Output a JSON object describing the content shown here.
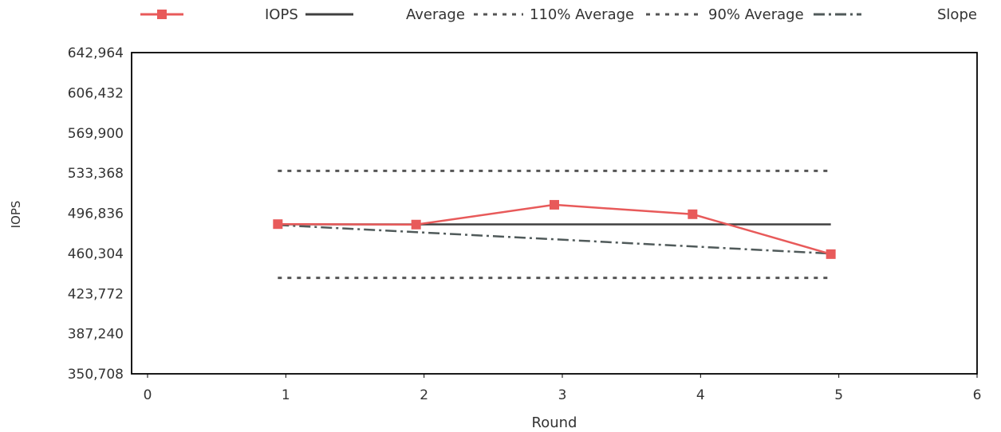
{
  "chart_data": {
    "type": "line",
    "xlabel": "Round",
    "ylabel": "IOPS",
    "xlim": [
      0,
      6
    ],
    "ylim": [
      350708,
      642964
    ],
    "x_ticks": [
      0,
      1,
      2,
      3,
      4,
      5,
      6
    ],
    "x_tick_labels": [
      "0",
      "1",
      "2",
      "3",
      "4",
      "5",
      "6"
    ],
    "y_ticks": [
      350708,
      387240,
      423772,
      460304,
      496836,
      533368,
      569900,
      606432,
      642964
    ],
    "y_tick_labels": [
      "350,708",
      "387,240",
      "423,772",
      "460,304",
      "496,836",
      "533,368",
      "569,900",
      "606,432",
      "642,964"
    ],
    "grid": false,
    "legend_position": "top",
    "series": [
      {
        "name": "IOPS",
        "style": "solid-square-markers",
        "color": "#e85a5a",
        "x": [
          1,
          2,
          3,
          4,
          5
        ],
        "y": [
          486900,
          486500,
          504500,
          495900,
          459600
        ]
      },
      {
        "name": "Average",
        "style": "solid",
        "color": "#404040",
        "x": [
          1,
          5
        ],
        "y": [
          486700,
          486700
        ]
      },
      {
        "name": "110% Average",
        "style": "dotted",
        "color": "#555555",
        "x": [
          1,
          5
        ],
        "y": [
          535400,
          535400
        ]
      },
      {
        "name": "90% Average",
        "style": "dotted",
        "color": "#555555",
        "x": [
          1,
          5
        ],
        "y": [
          438000,
          438000
        ]
      },
      {
        "name": "Slope",
        "style": "dash-dot",
        "color": "#505a5a",
        "x": [
          1,
          5
        ],
        "y": [
          486100,
          460100
        ]
      }
    ]
  }
}
